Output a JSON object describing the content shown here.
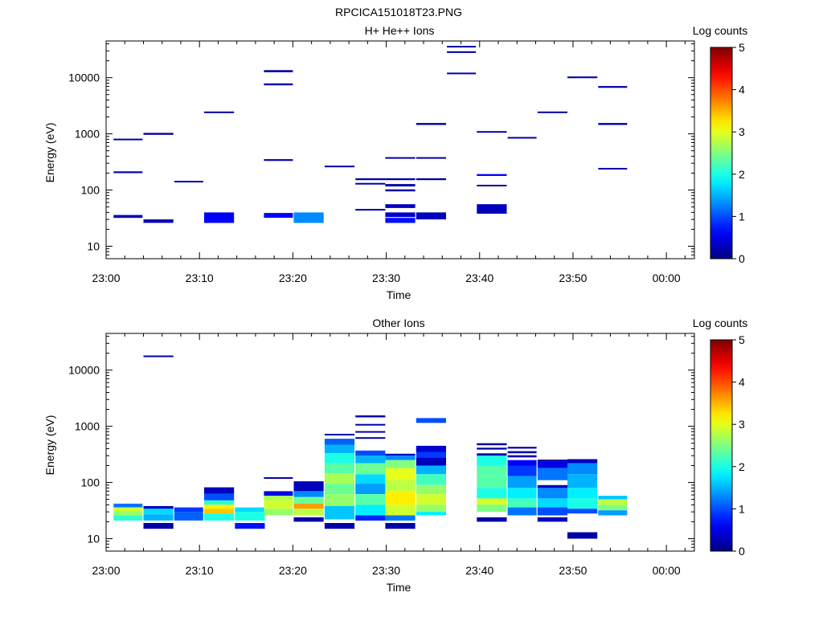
{
  "page_title": "RPCICA151018T23.PNG",
  "chart_data": [
    {
      "type": "heatmap",
      "title": "H+ He++ Ions",
      "xlabel": "Time",
      "ylabel": "Energy (eV)",
      "y_scale": "log",
      "ylim": [
        6,
        45000
      ],
      "y_ticks": [
        {
          "v": 10,
          "label": "10"
        },
        {
          "v": 100,
          "label": "100"
        },
        {
          "v": 1000,
          "label": "1000"
        },
        {
          "v": 10000,
          "label": "10000"
        }
      ],
      "x_range_min": [
        0,
        63
      ],
      "x_ticks": [
        {
          "v": 0,
          "label": "23:00"
        },
        {
          "v": 10,
          "label": "23:10"
        },
        {
          "v": 20,
          "label": "23:20"
        },
        {
          "v": 30,
          "label": "23:30"
        },
        {
          "v": 40,
          "label": "23:40"
        },
        {
          "v": 50,
          "label": "23:50"
        },
        {
          "v": 60,
          "label": "00:00"
        }
      ],
      "colorbar": {
        "label": "Log counts",
        "range": [
          0,
          5
        ],
        "ticks": [
          "0",
          "1",
          "2",
          "3",
          "4",
          "5"
        ]
      },
      "cells": [
        [
          0.8,
          3.9,
          780,
          820,
          0.2
        ],
        [
          0.8,
          3.9,
          200,
          215,
          0.2
        ],
        [
          0.8,
          3.9,
          32,
          36,
          0.3
        ],
        [
          4.0,
          7.2,
          960,
          1040,
          0.2
        ],
        [
          4.0,
          7.2,
          26,
          30,
          0.3
        ],
        [
          7.3,
          10.4,
          138,
          146,
          0.2
        ],
        [
          10.5,
          13.7,
          2350,
          2500,
          0.2
        ],
        [
          10.5,
          13.7,
          26,
          40,
          0.6
        ],
        [
          16.9,
          20.0,
          12500,
          13600,
          0.2
        ],
        [
          16.9,
          20.0,
          7300,
          7900,
          0.2
        ],
        [
          16.9,
          20.0,
          330,
          355,
          0.2
        ],
        [
          16.9,
          20.0,
          32,
          39,
          0.6
        ],
        [
          20.1,
          23.3,
          26,
          40,
          1.3
        ],
        [
          23.4,
          26.6,
          255,
          272,
          0.2
        ],
        [
          26.7,
          29.9,
          150,
          162,
          0.2
        ],
        [
          26.7,
          29.9,
          126,
          134,
          0.2
        ],
        [
          26.7,
          29.9,
          43,
          46,
          0.2
        ],
        [
          29.9,
          33.1,
          360,
          385,
          0.2
        ],
        [
          29.9,
          33.1,
          150,
          162,
          0.2
        ],
        [
          29.9,
          33.1,
          116,
          128,
          0.2
        ],
        [
          29.9,
          33.1,
          95,
          103,
          0.2
        ],
        [
          29.9,
          33.1,
          48,
          56,
          0.3
        ],
        [
          29.9,
          33.1,
          33,
          40,
          0.4
        ],
        [
          29.9,
          33.1,
          26,
          32,
          0.7
        ],
        [
          33.2,
          36.4,
          360,
          385,
          0.2
        ],
        [
          33.2,
          36.4,
          1440,
          1560,
          0.2
        ],
        [
          33.2,
          36.4,
          150,
          162,
          0.2
        ],
        [
          33.2,
          36.4,
          30,
          40,
          0.3
        ],
        [
          36.5,
          39.6,
          34500,
          36800,
          0.2
        ],
        [
          36.5,
          39.6,
          27500,
          29500,
          0.2
        ],
        [
          36.5,
          39.6,
          11500,
          12300,
          0.2
        ],
        [
          39.7,
          42.9,
          1050,
          1120,
          0.2
        ],
        [
          39.7,
          42.9,
          178,
          192,
          0.6
        ],
        [
          39.7,
          42.9,
          116,
          124,
          0.2
        ],
        [
          39.7,
          42.9,
          38,
          56,
          0.3
        ],
        [
          43.0,
          46.1,
          830,
          880,
          0.2
        ],
        [
          46.2,
          49.4,
          2350,
          2500,
          0.2
        ],
        [
          49.4,
          52.6,
          9800,
          10500,
          0.2
        ],
        [
          52.7,
          55.8,
          6600,
          7100,
          0.2
        ],
        [
          52.7,
          55.8,
          1440,
          1560,
          0.2
        ],
        [
          52.7,
          55.8,
          232,
          248,
          0.2
        ]
      ]
    },
    {
      "type": "heatmap",
      "title": "Other Ions",
      "xlabel": "Time",
      "ylabel": "Energy (eV)",
      "y_scale": "log",
      "ylim": [
        6,
        45000
      ],
      "y_ticks": [
        {
          "v": 10,
          "label": "10"
        },
        {
          "v": 100,
          "label": "100"
        },
        {
          "v": 1000,
          "label": "1000"
        },
        {
          "v": 10000,
          "label": "10000"
        }
      ],
      "x_range_min": [
        0,
        63
      ],
      "x_ticks": [
        {
          "v": 0,
          "label": "23:00"
        },
        {
          "v": 10,
          "label": "23:10"
        },
        {
          "v": 20,
          "label": "23:20"
        },
        {
          "v": 30,
          "label": "23:30"
        },
        {
          "v": 40,
          "label": "23:40"
        },
        {
          "v": 50,
          "label": "23:50"
        },
        {
          "v": 60,
          "label": "00:00"
        }
      ],
      "colorbar": {
        "label": "Log counts",
        "range": [
          0,
          5
        ],
        "ticks": [
          "0",
          "1",
          "2",
          "3",
          "4",
          "5"
        ]
      },
      "cells": [
        [
          0.8,
          3.9,
          36,
          42,
          1.2
        ],
        [
          0.8,
          3.9,
          31,
          36,
          2.9
        ],
        [
          0.8,
          3.9,
          26,
          31,
          2.6
        ],
        [
          0.8,
          3.9,
          21,
          26,
          2.1
        ],
        [
          4.0,
          7.2,
          34,
          38,
          0.3
        ],
        [
          4.0,
          7.2,
          27,
          34,
          1.7
        ],
        [
          4.0,
          7.2,
          21,
          27,
          1.5
        ],
        [
          4.0,
          7.2,
          15,
          19,
          0.2
        ],
        [
          4.0,
          7.2,
          17200,
          18200,
          0.2
        ],
        [
          7.3,
          10.4,
          30,
          36,
          0.9
        ],
        [
          7.3,
          10.4,
          21,
          30,
          1.1
        ],
        [
          10.5,
          13.7,
          63,
          82,
          0.3
        ],
        [
          10.5,
          13.7,
          48,
          63,
          1.0
        ],
        [
          10.5,
          13.7,
          40,
          48,
          2.1
        ],
        [
          10.5,
          13.7,
          34,
          40,
          3.2
        ],
        [
          10.5,
          13.7,
          28,
          34,
          3.4
        ],
        [
          10.5,
          13.7,
          21,
          28,
          2.0
        ],
        [
          13.8,
          17.0,
          30,
          36,
          1.7
        ],
        [
          13.8,
          17.0,
          21,
          30,
          2.0
        ],
        [
          13.8,
          17.0,
          15,
          19,
          0.7
        ],
        [
          16.9,
          20.0,
          116,
          124,
          0.2
        ],
        [
          16.9,
          20.0,
          58,
          70,
          0.5
        ],
        [
          16.9,
          20.0,
          48,
          58,
          2.7
        ],
        [
          16.9,
          20.0,
          34,
          48,
          2.9
        ],
        [
          16.9,
          20.0,
          26,
          34,
          2.6
        ],
        [
          20.1,
          23.3,
          70,
          105,
          0.3
        ],
        [
          20.1,
          23.3,
          55,
          70,
          1.3
        ],
        [
          20.1,
          23.3,
          42,
          55,
          2.4
        ],
        [
          20.1,
          23.3,
          34,
          42,
          3.6
        ],
        [
          20.1,
          23.3,
          26,
          34,
          2.8
        ],
        [
          20.1,
          23.3,
          20,
          24,
          0.2
        ],
        [
          23.4,
          26.6,
          690,
          735,
          0.2
        ],
        [
          23.4,
          26.6,
          470,
          600,
          1.1
        ],
        [
          23.4,
          26.6,
          330,
          470,
          1.5
        ],
        [
          23.4,
          26.6,
          220,
          330,
          2.0
        ],
        [
          23.4,
          26.6,
          145,
          220,
          2.3
        ],
        [
          23.4,
          26.6,
          95,
          145,
          2.7
        ],
        [
          23.4,
          26.6,
          62,
          95,
          2.4
        ],
        [
          23.4,
          26.6,
          38,
          62,
          2.6
        ],
        [
          23.4,
          26.6,
          22,
          38,
          1.6
        ],
        [
          23.4,
          26.6,
          15,
          19,
          0.2
        ],
        [
          26.7,
          29.9,
          1440,
          1560,
          0.2
        ],
        [
          26.7,
          29.9,
          1030,
          1100,
          0.2
        ],
        [
          26.7,
          29.9,
          770,
          820,
          0.2
        ],
        [
          26.7,
          29.9,
          600,
          640,
          0.2
        ],
        [
          26.7,
          29.9,
          300,
          370,
          1.0
        ],
        [
          26.7,
          29.9,
          220,
          300,
          1.5
        ],
        [
          26.7,
          29.9,
          140,
          220,
          2.4
        ],
        [
          26.7,
          29.9,
          95,
          140,
          1.7
        ],
        [
          26.7,
          29.9,
          62,
          95,
          1.4
        ],
        [
          26.7,
          29.9,
          40,
          62,
          2.3
        ],
        [
          26.7,
          29.9,
          26,
          40,
          1.8
        ],
        [
          26.7,
          29.9,
          21,
          26,
          0.8
        ],
        [
          29.9,
          33.1,
          300,
          325,
          0.3
        ],
        [
          29.9,
          33.1,
          250,
          300,
          1.3
        ],
        [
          29.9,
          33.1,
          180,
          250,
          2.5
        ],
        [
          29.9,
          33.1,
          110,
          180,
          3.0
        ],
        [
          29.9,
          33.1,
          70,
          110,
          2.8
        ],
        [
          29.9,
          33.1,
          40,
          70,
          3.2
        ],
        [
          29.9,
          33.1,
          26,
          40,
          2.9
        ],
        [
          29.9,
          33.1,
          21,
          26,
          1.2
        ],
        [
          29.9,
          33.1,
          15,
          19,
          0.2
        ],
        [
          33.2,
          36.4,
          1150,
          1400,
          1.0
        ],
        [
          33.2,
          36.4,
          350,
          450,
          0.4
        ],
        [
          33.2,
          36.4,
          280,
          350,
          0.9
        ],
        [
          33.2,
          36.4,
          200,
          280,
          0.3
        ],
        [
          33.2,
          36.4,
          140,
          200,
          1.5
        ],
        [
          33.2,
          36.4,
          90,
          140,
          2.2
        ],
        [
          33.2,
          36.4,
          62,
          90,
          2.6
        ],
        [
          33.2,
          36.4,
          40,
          62,
          2.9
        ],
        [
          33.2,
          36.4,
          30,
          40,
          2.6
        ],
        [
          33.2,
          36.4,
          26,
          30,
          1.8
        ],
        [
          39.7,
          42.9,
          460,
          500,
          0.2
        ],
        [
          39.7,
          42.9,
          385,
          415,
          0.2
        ],
        [
          39.7,
          42.9,
          300,
          330,
          0.2
        ],
        [
          39.7,
          42.9,
          200,
          300,
          2.0
        ],
        [
          39.7,
          42.9,
          130,
          200,
          2.3
        ],
        [
          39.7,
          42.9,
          80,
          130,
          2.3
        ],
        [
          39.7,
          42.9,
          52,
          80,
          2.0
        ],
        [
          39.7,
          42.9,
          40,
          52,
          2.9
        ],
        [
          39.7,
          42.9,
          30,
          40,
          2.5
        ],
        [
          39.7,
          42.9,
          20,
          24,
          0.2
        ],
        [
          43.0,
          46.1,
          400,
          430,
          0.2
        ],
        [
          43.0,
          46.1,
          330,
          360,
          0.2
        ],
        [
          43.0,
          46.1,
          280,
          305,
          0.2
        ],
        [
          43.0,
          46.1,
          200,
          250,
          0.6
        ],
        [
          43.0,
          46.1,
          130,
          200,
          0.9
        ],
        [
          43.0,
          46.1,
          80,
          130,
          1.4
        ],
        [
          43.0,
          46.1,
          52,
          80,
          1.8
        ],
        [
          43.0,
          46.1,
          36,
          52,
          2.2
        ],
        [
          43.0,
          46.1,
          26,
          36,
          1.2
        ],
        [
          46.2,
          49.4,
          235,
          255,
          0.2
        ],
        [
          46.2,
          49.4,
          180,
          235,
          0.5
        ],
        [
          46.2,
          49.4,
          110,
          180,
          1.2
        ],
        [
          46.2,
          49.4,
          80,
          90,
          0.3
        ],
        [
          46.2,
          49.4,
          52,
          80,
          1.3
        ],
        [
          46.2,
          49.4,
          36,
          52,
          1.7
        ],
        [
          46.2,
          49.4,
          26,
          36,
          1.0
        ],
        [
          46.2,
          49.4,
          20,
          24,
          0.3
        ],
        [
          49.4,
          52.6,
          220,
          260,
          0.3
        ],
        [
          49.4,
          52.6,
          140,
          220,
          1.3
        ],
        [
          49.4,
          52.6,
          80,
          140,
          1.5
        ],
        [
          49.4,
          52.6,
          52,
          80,
          1.8
        ],
        [
          49.4,
          52.6,
          34,
          52,
          2.0
        ],
        [
          49.4,
          52.6,
          28,
          34,
          1.0
        ],
        [
          49.4,
          52.6,
          10,
          13,
          0.2
        ],
        [
          52.7,
          55.8,
          50,
          58,
          1.6
        ],
        [
          52.7,
          55.8,
          40,
          50,
          2.8
        ],
        [
          52.7,
          55.8,
          32,
          40,
          2.5
        ],
        [
          52.7,
          55.8,
          26,
          32,
          1.4
        ]
      ]
    }
  ]
}
